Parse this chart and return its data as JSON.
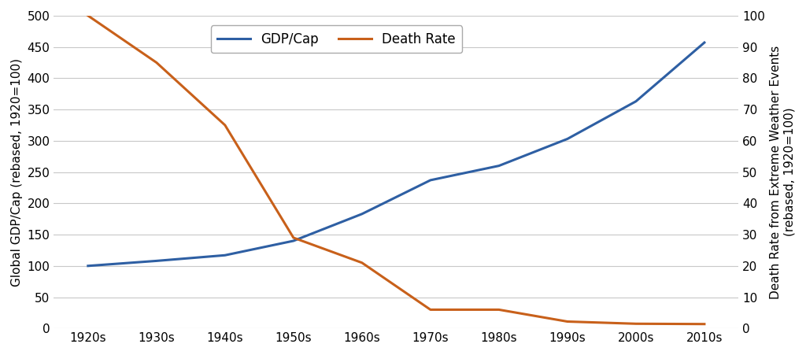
{
  "decades": [
    "1920s",
    "1930s",
    "1940s",
    "1950s",
    "1960s",
    "1970s",
    "1980s",
    "1990s",
    "2000s",
    "2010s"
  ],
  "gdp_per_cap": [
    100,
    108,
    117,
    140,
    183,
    237,
    260,
    303,
    363,
    457
  ],
  "death_rate": [
    100,
    85,
    65,
    29,
    21,
    6,
    6,
    2.2,
    1.5,
    1.4
  ],
  "gdp_color": "#2E5FA3",
  "death_rate_color": "#C8601A",
  "gdp_label": "GDP/Cap",
  "death_rate_label": "Death Rate",
  "ylabel_left": "Global GDP/Cap (rebased, 1920=100)",
  "ylabel_right": "Death Rate from Extreme Weather Events\n(rebased, 1920=100)",
  "ylim_left": [
    0,
    500
  ],
  "ylim_right": [
    0,
    100
  ],
  "yticks_left": [
    0,
    50,
    100,
    150,
    200,
    250,
    300,
    350,
    400,
    450,
    500
  ],
  "yticks_right": [
    0,
    10,
    20,
    30,
    40,
    50,
    60,
    70,
    80,
    90,
    100
  ],
  "background_color": "#ffffff",
  "grid_color": "#c8c8c8",
  "line_width": 2.2,
  "legend_fontsize": 12,
  "axis_fontsize": 11,
  "tick_fontsize": 11
}
